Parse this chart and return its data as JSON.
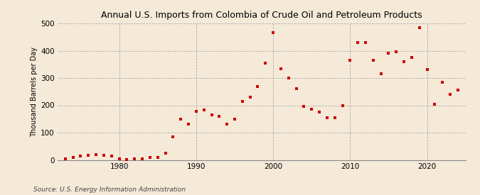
{
  "title": "Annual U.S. Imports from Colombia of Crude Oil and Petroleum Products",
  "ylabel": "Thousand Barrels per Day",
  "source": "Source: U.S. Energy Information Administration",
  "background_color": "#f5ead8",
  "marker_color": "#cc0000",
  "xlim": [
    1972,
    2025
  ],
  "ylim": [
    0,
    500
  ],
  "yticks": [
    0,
    100,
    200,
    300,
    400,
    500
  ],
  "xticks": [
    1980,
    1990,
    2000,
    2010,
    2020
  ],
  "years": [
    1973,
    1974,
    1975,
    1976,
    1977,
    1978,
    1979,
    1980,
    1981,
    1982,
    1983,
    1984,
    1985,
    1986,
    1987,
    1988,
    1989,
    1990,
    1991,
    1992,
    1993,
    1994,
    1995,
    1996,
    1997,
    1998,
    1999,
    2000,
    2001,
    2002,
    2003,
    2004,
    2005,
    2006,
    2007,
    2008,
    2009,
    2010,
    2011,
    2012,
    2013,
    2014,
    2015,
    2016,
    2017,
    2018,
    2019,
    2020,
    2021,
    2022,
    2023,
    2024
  ],
  "values": [
    5,
    10,
    15,
    18,
    20,
    18,
    15,
    3,
    2,
    4,
    5,
    8,
    10,
    25,
    85,
    150,
    130,
    178,
    183,
    165,
    160,
    130,
    150,
    215,
    230,
    270,
    355,
    465,
    335,
    300,
    260,
    195,
    185,
    175,
    155,
    155,
    200,
    365,
    430,
    430,
    365,
    315,
    390,
    395,
    360,
    375,
    485,
    330,
    205,
    285,
    240,
    255
  ]
}
